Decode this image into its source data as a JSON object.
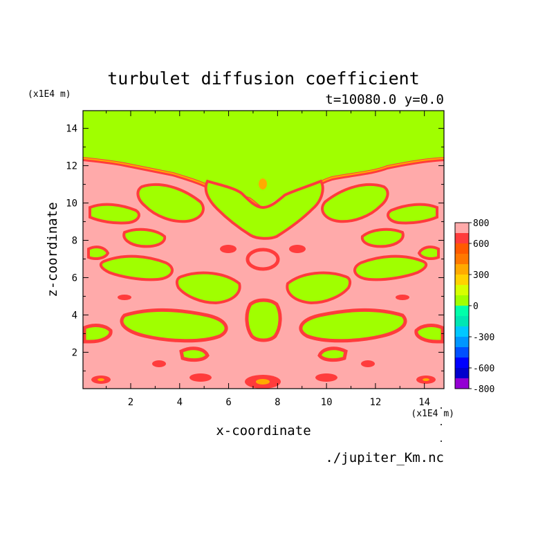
{
  "figure": {
    "title": "turbulet diffusion coefficient",
    "subtitle": "t=10080.0 y=0.0",
    "source": "./jupiter_Km.nc"
  },
  "colorbar": {
    "levels": [
      -800,
      -700,
      -600,
      -500,
      -400,
      -300,
      -200,
      -100,
      0,
      100,
      200,
      300,
      400,
      500,
      600,
      700,
      800
    ],
    "colors": [
      "#9400d3",
      "#0000cd",
      "#0000ff",
      "#0050ff",
      "#0096ff",
      "#00c8ff",
      "#00e6b4",
      "#00ffaa",
      "#a0ff00",
      "#d7ff00",
      "#ffd200",
      "#ffaa00",
      "#ff7800",
      "#ff5a00",
      "#ff3c3c",
      "#ffaaaa"
    ],
    "tick_labels": [
      "800",
      "600",
      "300",
      "0",
      "-300",
      "-600",
      "-800"
    ],
    "tick_values": [
      800,
      600,
      300,
      0,
      -300,
      -600,
      -800
    ]
  },
  "chart_data": {
    "type": "heatmap",
    "title": "turbulet diffusion coefficient",
    "subtitle": "t=10080.0 y=0.0",
    "xlabel": "x-coordinate",
    "ylabel": "z-coordinate",
    "x_unit": "(x1E4 m)",
    "y_unit": "(x1E4 m)",
    "xlim": [
      0.05,
      14.8
    ],
    "ylim": [
      0.05,
      14.95
    ],
    "x_ticks": [
      2,
      4,
      6,
      8,
      10,
      12,
      14
    ],
    "y_ticks": [
      2,
      4,
      6,
      8,
      10,
      12,
      14
    ],
    "value_range": [
      -800,
      800
    ],
    "description_of_field": "upper layer above z~12.3 is ~0 (green); below, mostly ~800 (pink) with patches of 0-700 forming a left-right symmetric pattern about x~7.5",
    "grid": false,
    "legend": "colorbar-right"
  }
}
